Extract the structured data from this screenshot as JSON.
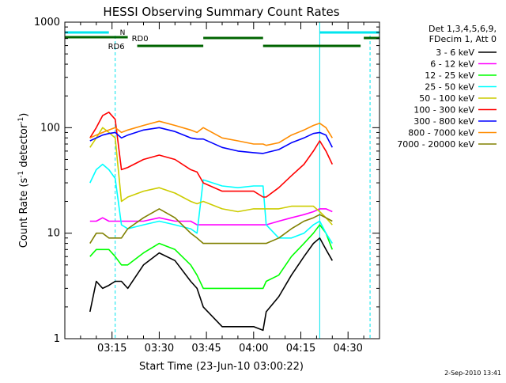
{
  "chart_data": {
    "type": "line",
    "title": "HESSI Observing Summary Count Rates",
    "xlabel": "Start Time (23-Jun-10 03:00:22)",
    "ylabel": "Count Rate (s",
    "ylabel_sup1": "-1",
    "ylabel_mid": " detector",
    "ylabel_sup2": "-1",
    "ylabel_end": ")",
    "y_scale": "log",
    "ylim": [
      1,
      1000
    ],
    "xlim": [
      "03:00",
      "04:40"
    ],
    "x_ticks": [
      "03:15",
      "03:30",
      "03:45",
      "04:00",
      "04:15",
      "04:30"
    ],
    "y_ticks": [
      "1",
      "10",
      "100",
      "1000"
    ],
    "grid": false,
    "legend_position": "right",
    "legend_header": [
      "Det 1,3,4,5,6,9,",
      "FDecim 1, Att 0"
    ],
    "footer_timestamp": "2-Sep-2010 13:41",
    "colors": {
      "background": "#ffffff",
      "axes": "#000000",
      "rd_bars": "#006400",
      "night_bars": "#00e5ee",
      "vline_solid": "#00e5ee",
      "vline_dashed": "#00e5ee"
    },
    "x": [
      "03:08",
      "03:10",
      "03:12",
      "03:14",
      "03:16",
      "03:18",
      "03:20",
      "03:25",
      "03:30",
      "03:35",
      "03:40",
      "03:42",
      "03:44",
      "03:50",
      "03:55",
      "04:00",
      "04:03",
      "04:04",
      "04:08",
      "04:12",
      "04:16",
      "04:19",
      "04:21",
      "04:23",
      "04:25"
    ],
    "series": [
      {
        "name": "3 - 6 keV",
        "color": "#000000",
        "values": [
          1.8,
          3.5,
          3.0,
          3.2,
          3.5,
          3.5,
          3.0,
          5.0,
          6.5,
          5.5,
          3.5,
          3.0,
          2.0,
          1.3,
          1.3,
          1.3,
          1.2,
          1.8,
          2.5,
          4.0,
          6.0,
          8.0,
          9.0,
          7.0,
          5.5
        ]
      },
      {
        "name": "6 - 12 keV",
        "color": "#ff00ff",
        "values": [
          13,
          13,
          14,
          13,
          13,
          13,
          13,
          13,
          14,
          13,
          13,
          12,
          12,
          12,
          12,
          12,
          12,
          12,
          13,
          14,
          15,
          16,
          17,
          17,
          16
        ]
      },
      {
        "name": "12 - 25 keV",
        "color": "#00ff00",
        "values": [
          6,
          7,
          7,
          7,
          6,
          5,
          5,
          6.5,
          8,
          7,
          5,
          4,
          3,
          3,
          3,
          3,
          3,
          3.5,
          4,
          6,
          8,
          10,
          12,
          10,
          7
        ]
      },
      {
        "name": "25 - 50 keV",
        "color": "#00ffff",
        "values": [
          30,
          40,
          45,
          40,
          33,
          12,
          11,
          12,
          13,
          12,
          11,
          10,
          32,
          28,
          27,
          28,
          28,
          12,
          9,
          9,
          10,
          12,
          13,
          10,
          8
        ]
      },
      {
        "name": "50 - 100 keV",
        "color": "#cccc00",
        "values": [
          65,
          80,
          100,
          90,
          80,
          20,
          22,
          25,
          27,
          24,
          20,
          19,
          20,
          17,
          16,
          17,
          17,
          17,
          17,
          18,
          18,
          18,
          16,
          14,
          12
        ]
      },
      {
        "name": "100 - 300 keV",
        "color": "#ff0000",
        "values": [
          80,
          100,
          130,
          140,
          120,
          40,
          42,
          50,
          55,
          50,
          40,
          38,
          30,
          25,
          25,
          25,
          22,
          22,
          27,
          35,
          45,
          60,
          75,
          60,
          45
        ]
      },
      {
        "name": "300 - 800 keV",
        "color": "#0000ff",
        "values": [
          75,
          80,
          85,
          88,
          90,
          80,
          85,
          95,
          100,
          92,
          80,
          78,
          78,
          65,
          60,
          58,
          57,
          58,
          62,
          72,
          80,
          88,
          90,
          85,
          65
        ]
      },
      {
        "name": "800 - 7000 keV",
        "color": "#ff8c00",
        "values": [
          80,
          85,
          90,
          95,
          100,
          90,
          95,
          105,
          115,
          105,
          95,
          90,
          100,
          80,
          75,
          70,
          70,
          68,
          72,
          85,
          95,
          105,
          110,
          100,
          80
        ]
      },
      {
        "name": "7000 - 20000 keV",
        "color": "#808000",
        "values": [
          8,
          10,
          10,
          9,
          9,
          9,
          11,
          14,
          17,
          14,
          10,
          9,
          8,
          8,
          8,
          8,
          8,
          8,
          9,
          11,
          13,
          14,
          15,
          14,
          13
        ]
      }
    ],
    "rd_bar_labels": [
      "RD0",
      "RD6"
    ],
    "night_bar_label": "N"
  }
}
